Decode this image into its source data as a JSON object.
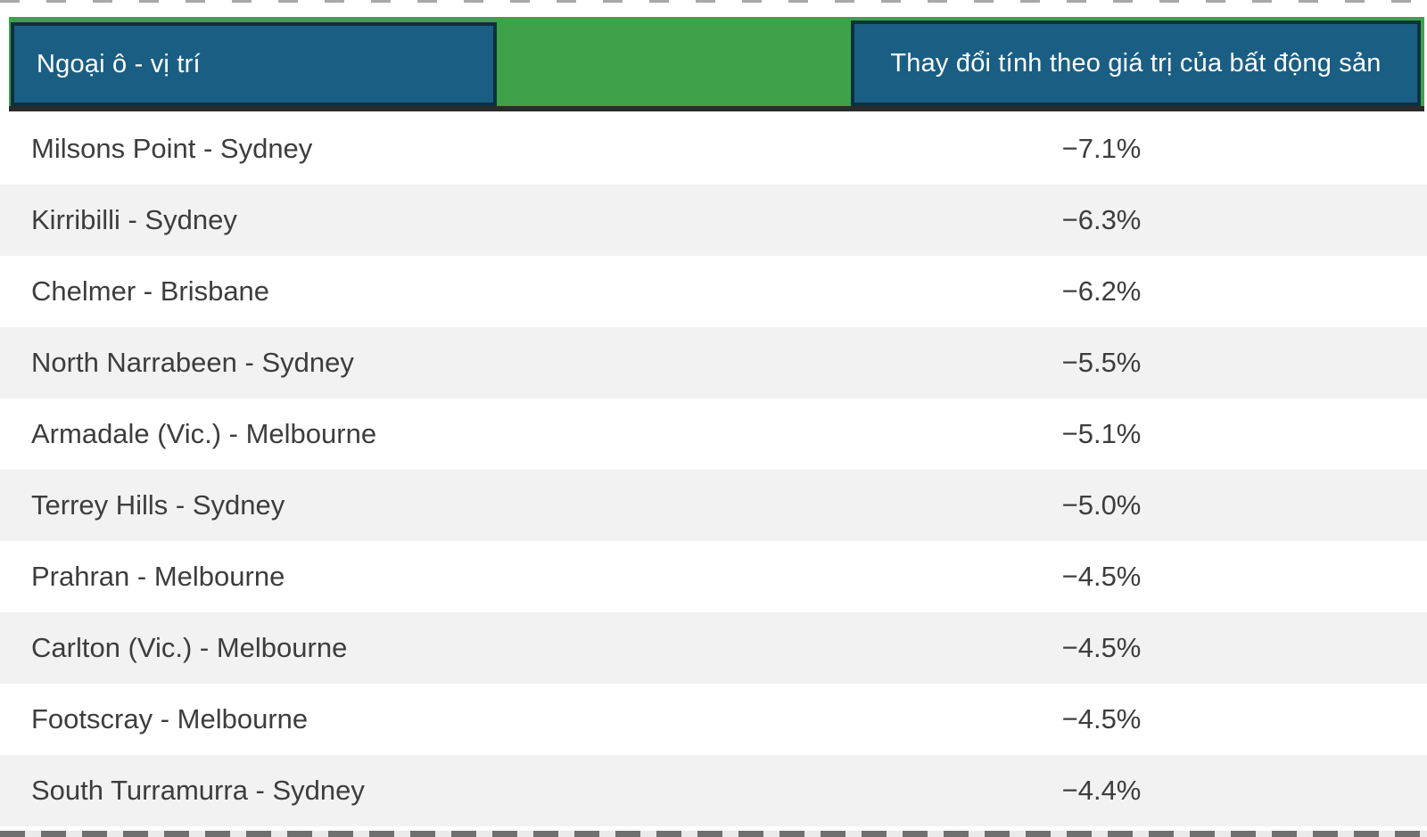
{
  "colors": {
    "green": "#3fa24a",
    "teal_blue": "#1b5e83",
    "box_border": "#0f3040",
    "rule": "#2b2b2b",
    "row_alt": "#f2f2f2",
    "text": "#3d3d3d",
    "header_text": "#ffffff"
  },
  "header": {
    "suburb_column_label": "Ngoại ô - vị trí",
    "change_column_label": "Thay đổi tính theo giá trị của bất động sản"
  },
  "table": {
    "rows": [
      {
        "suburb": "Milsons Point - Sydney",
        "change": "−7.1%"
      },
      {
        "suburb": "Kirribilli - Sydney",
        "change": "−6.3%"
      },
      {
        "suburb": "Chelmer - Brisbane",
        "change": "−6.2%"
      },
      {
        "suburb": "North Narrabeen - Sydney",
        "change": "−5.5%"
      },
      {
        "suburb": "Armadale (Vic.) - Melbourne",
        "change": "−5.1%"
      },
      {
        "suburb": "Terrey Hills - Sydney",
        "change": "−5.0%"
      },
      {
        "suburb": "Prahran - Melbourne",
        "change": "−4.5%"
      },
      {
        "suburb": "Carlton (Vic.) - Melbourne",
        "change": "−4.5%"
      },
      {
        "suburb": "Footscray - Melbourne",
        "change": "−4.5%"
      },
      {
        "suburb": "South Turramurra - Sydney",
        "change": "−4.4%"
      }
    ]
  },
  "chart_data": {
    "type": "table",
    "columns": [
      "Ngoại ô - vị trí",
      "Thay đổi tính theo giá trị của bất động sản"
    ],
    "categories": [
      "Milsons Point - Sydney",
      "Kirribilli - Sydney",
      "Chelmer - Brisbane",
      "North Narrabeen - Sydney",
      "Armadale (Vic.) - Melbourne",
      "Terrey Hills - Sydney",
      "Prahran - Melbourne",
      "Carlton (Vic.) - Melbourne",
      "Footscray - Melbourne",
      "South Turramurra - Sydney"
    ],
    "values": [
      -7.1,
      -6.3,
      -6.2,
      -5.5,
      -5.1,
      -5.0,
      -4.5,
      -4.5,
      -4.5,
      -4.4
    ],
    "value_unit": "%",
    "layout_hints": {
      "zebra_striping": true,
      "header_style": "teal boxes on green band",
      "value_alignment": "center"
    }
  }
}
